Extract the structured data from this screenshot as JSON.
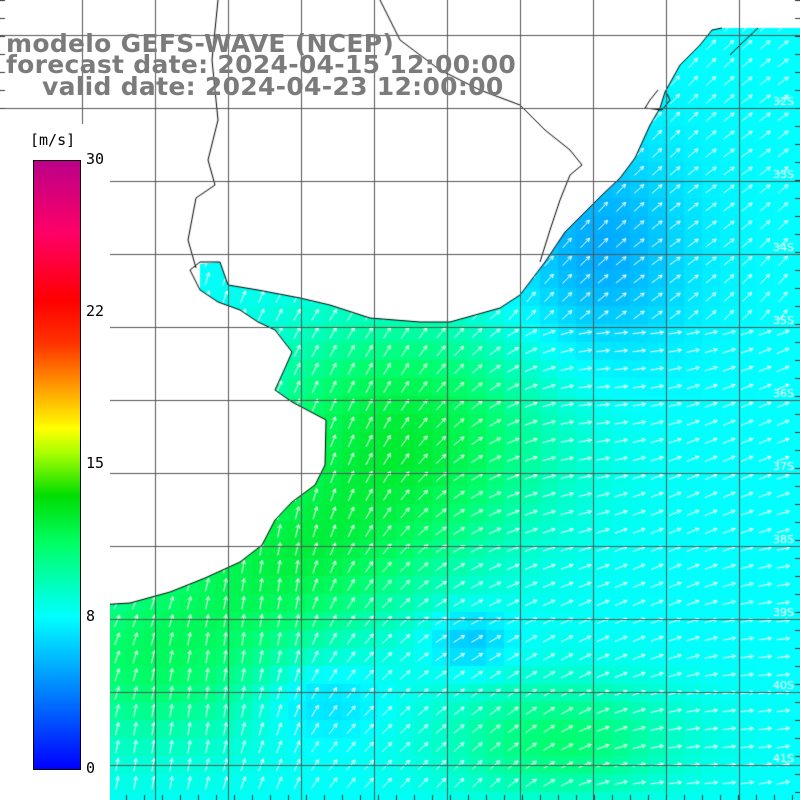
{
  "title": {
    "line1": "modelo GEFS-WAVE (NCEP)",
    "line2": "forecast date: 2024-04-15 12:00:00",
    "line3": "valid date: 2024-04-23 12:00:00"
  },
  "colorbar": {
    "unit": "[m/s]",
    "tick_labels": [
      "30",
      "22",
      "15",
      "8",
      "0"
    ],
    "colors": [
      "#0000ff",
      "#0099ff",
      "#00ffff",
      "#00ff66",
      "#00dd00",
      "#aaff00",
      "#ffff00",
      "#ff9900",
      "#ff0000",
      "#bb0088"
    ]
  },
  "lat_labels": [
    "32S",
    "33S",
    "34S",
    "35S",
    "36S",
    "37S",
    "38S",
    "39S",
    "40S",
    "41S"
  ],
  "colors": {
    "land": "#ffffff",
    "coast": "#000000",
    "grid": "#555555",
    "arrows": "#ffffff",
    "title": "#7b7b7b"
  }
}
